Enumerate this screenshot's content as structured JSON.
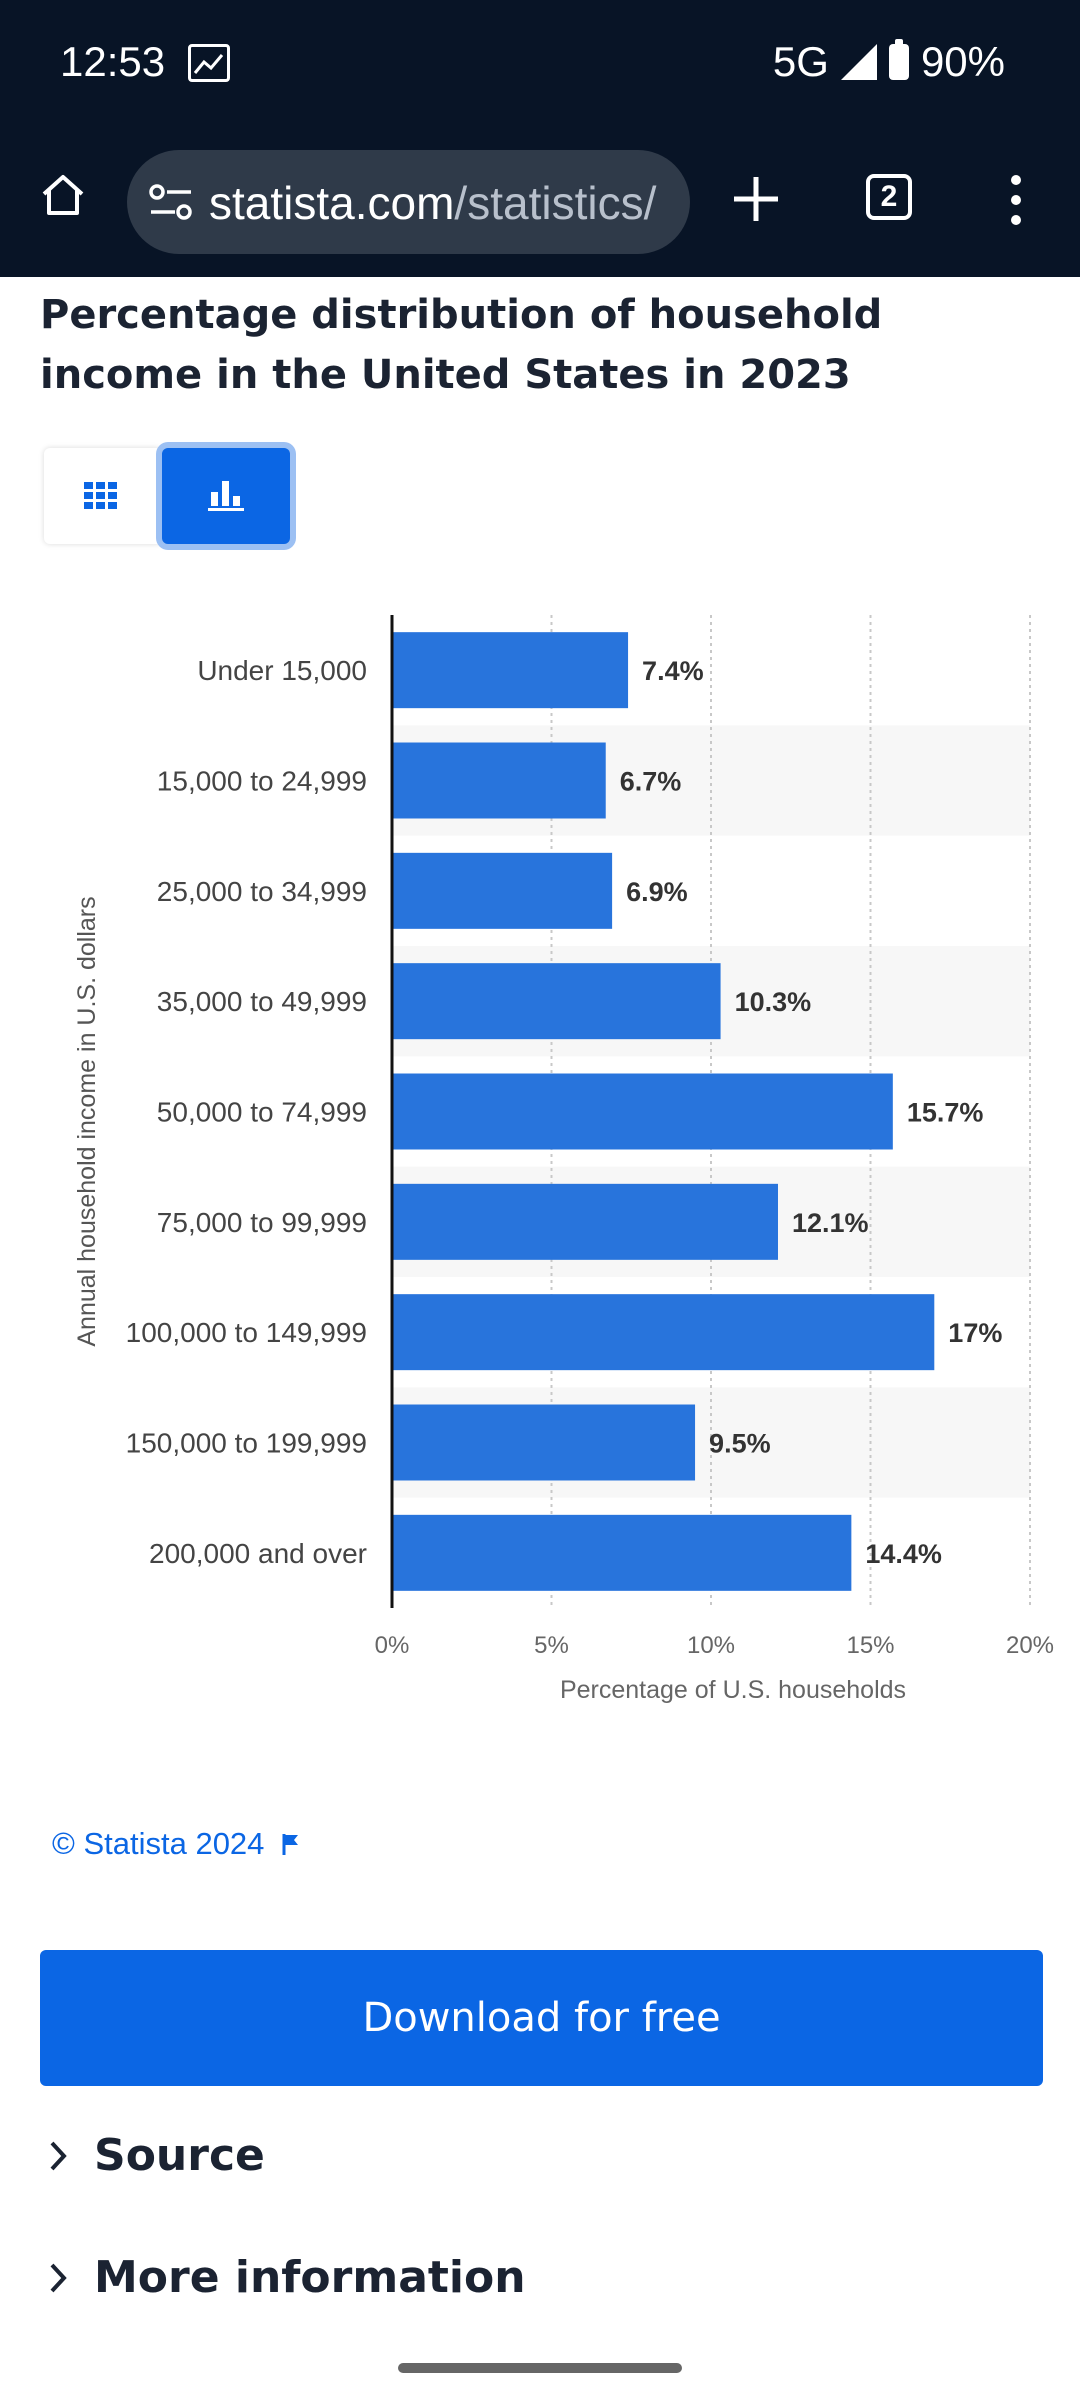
{
  "status_bar": {
    "time": "12:53",
    "network": "5G",
    "battery": "90%"
  },
  "browser": {
    "url_domain": "statista.com",
    "url_path": "/statistics/",
    "tab_count": "2"
  },
  "page": {
    "title": "Percentage distribution of household income in the United States in 2023"
  },
  "view_toggle": {
    "table_icon": "grid-icon",
    "chart_icon": "bar-chart-icon",
    "selected": "chart"
  },
  "chart_data": {
    "type": "bar",
    "orientation": "horizontal",
    "categories": [
      "Under 15,000",
      "15,000 to 24,999",
      "25,000 to 34,999",
      "35,000 to 49,999",
      "50,000 to 74,999",
      "75,000 to 99,999",
      "100,000 to 149,999",
      "150,000 to 199,999",
      "200,000 and over"
    ],
    "values": [
      7.4,
      6.7,
      6.9,
      10.3,
      15.7,
      12.1,
      17,
      9.5,
      14.4
    ],
    "value_labels": [
      "7.4%",
      "6.7%",
      "6.9%",
      "10.3%",
      "15.7%",
      "12.1%",
      "17%",
      "9.5%",
      "14.4%"
    ],
    "xlabel": "Percentage of U.S. households",
    "ylabel": "Annual household income in U.S. dollars",
    "xlim": [
      0,
      20
    ],
    "x_ticks": [
      0,
      5,
      10,
      15,
      20
    ],
    "x_tick_labels": [
      "0%",
      "5%",
      "10%",
      "15%",
      "20%"
    ],
    "grid": "vertical dotted",
    "bar_color": "#2874dc"
  },
  "footer": {
    "copyright": "© Statista 2024",
    "download_label": "Download for free"
  },
  "accordion": [
    {
      "label": "Source"
    },
    {
      "label": "More information"
    }
  ],
  "colors": {
    "accent": "#0b66e4",
    "header_bg": "#081426"
  }
}
